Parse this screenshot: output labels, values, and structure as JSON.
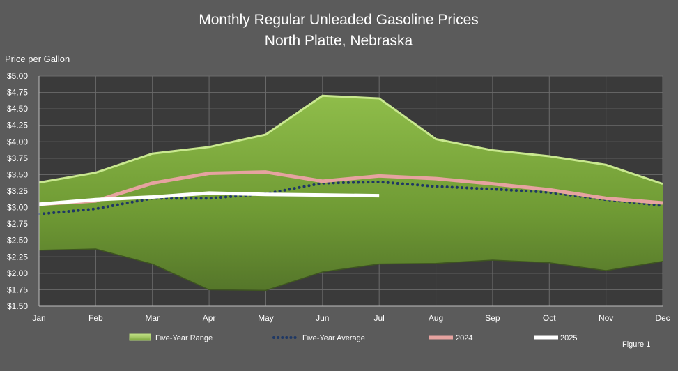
{
  "chart_data": {
    "type": "line",
    "title": "Monthly Regular Unleaded Gasoline Prices",
    "subtitle": "North Platte, Nebraska",
    "ylabel": "Price per Gallon",
    "xlabel": "",
    "figure_label": "Figure 1",
    "ylim": [
      1.5,
      5.0
    ],
    "y_ticks": [
      "$1.50",
      "$1.75",
      "$2.00",
      "$2.25",
      "$2.50",
      "$2.75",
      "$3.00",
      "$3.25",
      "$3.50",
      "$3.75",
      "$4.00",
      "$4.25",
      "$4.50",
      "$4.75",
      "$5.00"
    ],
    "y_tick_values": [
      1.5,
      1.75,
      2.0,
      2.25,
      2.5,
      2.75,
      3.0,
      3.25,
      3.5,
      3.75,
      4.0,
      4.25,
      4.5,
      4.75,
      5.0
    ],
    "categories": [
      "Jan",
      "Feb",
      "Mar",
      "Apr",
      "May",
      "Jun",
      "Jul",
      "Aug",
      "Sep",
      "Oct",
      "Nov",
      "Dec"
    ],
    "grid": true,
    "legend_position": "bottom",
    "range": {
      "name": "Five-Year Range",
      "low": [
        2.35,
        2.37,
        2.14,
        1.75,
        1.74,
        2.02,
        2.14,
        2.15,
        2.2,
        2.16,
        2.04,
        2.18
      ],
      "high": [
        3.38,
        3.53,
        3.82,
        3.92,
        4.11,
        4.7,
        4.66,
        4.04,
        3.87,
        3.78,
        3.65,
        3.36
      ],
      "color": "#7da83e"
    },
    "series": [
      {
        "name": "Five-Year Average",
        "values": [
          2.9,
          2.98,
          3.14,
          3.14,
          3.21,
          3.37,
          3.39,
          3.32,
          3.28,
          3.23,
          3.12,
          3.03
        ],
        "color": "#1f3864",
        "style": "dotted"
      },
      {
        "name": "2024",
        "values": [
          3.05,
          3.1,
          3.37,
          3.52,
          3.54,
          3.4,
          3.48,
          3.44,
          3.36,
          3.27,
          3.14,
          3.07
        ],
        "color": "#e6a3a0",
        "style": "solid"
      },
      {
        "name": "2025",
        "values": [
          3.05,
          3.12,
          3.16,
          3.22,
          3.2,
          3.19,
          3.18,
          null,
          null,
          null,
          null,
          null
        ],
        "color": "#ffffff",
        "style": "solid"
      }
    ]
  }
}
